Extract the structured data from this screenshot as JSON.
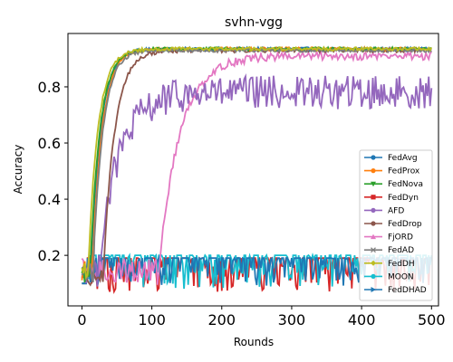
{
  "chart_data": {
    "type": "line",
    "title": "svhn-vgg",
    "xlabel": "Rounds",
    "ylabel": "Accuracy",
    "xlim": [
      -20,
      510
    ],
    "ylim": [
      0.02,
      0.99
    ],
    "xticks": [
      0,
      100,
      200,
      300,
      400,
      500
    ],
    "yticks": [
      0.2,
      0.4,
      0.6,
      0.8
    ],
    "ytick_labels": [
      "0.2",
      "0.4",
      "0.6",
      "0.8"
    ],
    "grid": false,
    "legend_position": "lower right",
    "series": [
      {
        "name": "FedAvg",
        "color": "#1f77b4",
        "marker": "circle",
        "curve": "fast",
        "plateau": 0.935,
        "shift": 0
      },
      {
        "name": "FedProx",
        "color": "#ff7f0e",
        "marker": "circle",
        "curve": "fast",
        "plateau": 0.935,
        "shift": 2
      },
      {
        "name": "FedNova",
        "color": "#2ca02c",
        "marker": "triangle-down",
        "curve": "fast",
        "plateau": 0.935,
        "shift": -1
      },
      {
        "name": "FedDyn",
        "color": "#d62728",
        "marker": "square",
        "curve": "noise",
        "low": 0.07,
        "high": 0.19
      },
      {
        "name": "AFD",
        "color": "#9467bd",
        "marker": "circle",
        "curve": "afd",
        "plateau": 0.78
      },
      {
        "name": "FedDrop",
        "color": "#8c564b",
        "marker": "circle",
        "curve": "drop",
        "plateau": 0.93
      },
      {
        "name": "FjORD",
        "color": "#e377c2",
        "marker": "triangle-up",
        "curve": "fjord",
        "plateau": 0.91
      },
      {
        "name": "FedAD",
        "color": "#7f7f7f",
        "marker": "x",
        "curve": "fast",
        "plateau": 0.93,
        "shift": 3
      },
      {
        "name": "FedDH",
        "color": "#bcbd22",
        "marker": "diamond",
        "curve": "fast",
        "plateau": 0.935,
        "shift": -4
      },
      {
        "name": "MOON",
        "color": "#17becf",
        "marker": "circle",
        "curve": "noise",
        "low": 0.08,
        "high": 0.2
      },
      {
        "name": "FedDHAD",
        "color": "#1f77b4",
        "marker": "triangle-right",
        "curve": "noise",
        "low": 0.09,
        "high": 0.19
      }
    ]
  }
}
